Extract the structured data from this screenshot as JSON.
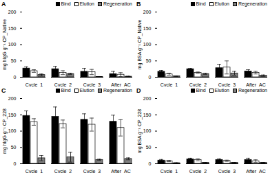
{
  "chart_data": [
    {
      "type": "bar",
      "title": "A",
      "ylabel": "mg hIgG g⁻¹ CP_Native",
      "categories": [
        "Cycle_1",
        "Cycle_2",
        "Cycle_3",
        "After_AC"
      ],
      "series": [
        {
          "name": "Bind",
          "color": "#000000",
          "values": [
            27,
            25,
            17,
            10
          ],
          "errors": [
            5,
            8,
            10,
            8
          ]
        },
        {
          "name": "Elution",
          "color": "#ffffff",
          "values": [
            19,
            14,
            16,
            8
          ],
          "errors": [
            4,
            6,
            8,
            6
          ]
        },
        {
          "name": "Regeneration",
          "color": "#808080",
          "values": [
            7,
            10,
            1,
            2
          ],
          "errors": [
            3,
            2,
            1,
            1
          ]
        }
      ],
      "ylim": [
        0,
        200
      ],
      "yticks": [
        0,
        50,
        100,
        150,
        200
      ],
      "grid": false,
      "legend": "top-right"
    },
    {
      "type": "bar",
      "title": "B",
      "ylabel": "mg BSA g⁻¹ CP_Native",
      "categories": [
        "Cycle_1",
        "Cycle_2",
        "Cycle_3",
        "After_AC"
      ],
      "series": [
        {
          "name": "Bind",
          "color": "#000000",
          "values": [
            17,
            25,
            28,
            18
          ],
          "errors": [
            4,
            2,
            12,
            5
          ]
        },
        {
          "name": "Elution",
          "color": "#ffffff",
          "values": [
            9,
            14,
            30,
            14
          ],
          "errors": [
            3,
            2,
            20,
            4
          ]
        },
        {
          "name": "Regeneration",
          "color": "#808080",
          "values": [
            3,
            10,
            12,
            5
          ],
          "errors": [
            1,
            2,
            6,
            2
          ]
        }
      ],
      "ylim": [
        0,
        200
      ],
      "yticks": [
        0,
        50,
        100,
        150,
        200
      ],
      "grid": false,
      "legend": "top-right"
    },
    {
      "type": "bar",
      "title": "C",
      "ylabel": "mg hIgG g⁻¹ CP_228",
      "categories": [
        "Cycle_1",
        "Cycle_2",
        "Cycle_3",
        "After_AC"
      ],
      "series": [
        {
          "name": "Bind",
          "color": "#000000",
          "values": [
            147,
            144,
            135,
            129
          ],
          "errors": [
            15,
            30,
            18,
            20
          ]
        },
        {
          "name": "Elution",
          "color": "#ffffff",
          "values": [
            128,
            122,
            120,
            110
          ],
          "errors": [
            10,
            12,
            20,
            25
          ]
        },
        {
          "name": "Regeneration",
          "color": "#808080",
          "values": [
            17,
            20,
            12,
            15
          ],
          "errors": [
            8,
            15,
            2,
            3
          ]
        }
      ],
      "ylim": [
        0,
        200
      ],
      "yticks": [
        0,
        50,
        100,
        150,
        200
      ],
      "grid": false,
      "legend": "top-right"
    },
    {
      "type": "bar",
      "title": "D",
      "ylabel": "mg BSA g⁻¹ CP_228",
      "categories": [
        "Cycle_1",
        "Cycle_2",
        "Cycle_3",
        "After_AC"
      ],
      "series": [
        {
          "name": "Bind",
          "color": "#000000",
          "values": [
            10,
            14,
            12,
            12
          ],
          "errors": [
            3,
            3,
            3,
            5
          ]
        },
        {
          "name": "Elution",
          "color": "#ffffff",
          "values": [
            8,
            12,
            9,
            8
          ],
          "errors": [
            2,
            3,
            2,
            4
          ]
        },
        {
          "name": "Regeneration",
          "color": "#808080",
          "values": [
            2,
            3,
            3,
            3
          ],
          "errors": [
            1,
            1,
            1,
            1
          ]
        }
      ],
      "ylim": [
        0,
        200
      ],
      "yticks": [
        0,
        50,
        100,
        150,
        200
      ],
      "grid": false,
      "legend": "top-right"
    }
  ]
}
